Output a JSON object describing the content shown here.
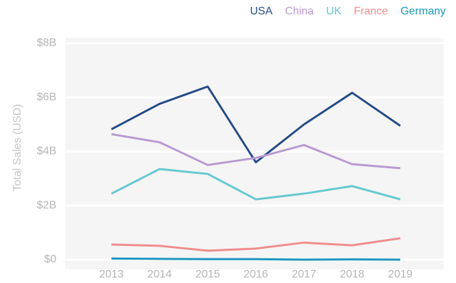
{
  "chart_data": {
    "type": "line",
    "y_label": "Total Sales (USD)",
    "categories": [
      "2013",
      "2014",
      "2015",
      "2016",
      "2017",
      "2018",
      "2019"
    ],
    "series": [
      {
        "name": "USA",
        "color": "#234a87",
        "values": [
          4.82,
          5.76,
          6.4,
          3.6,
          5.0,
          6.17,
          4.95
        ]
      },
      {
        "name": "China",
        "color": "#b899d0",
        "values": [
          4.64,
          4.34,
          3.5,
          3.76,
          4.24,
          3.53,
          3.38
        ]
      },
      {
        "name": "UK",
        "color": "#62c9cf",
        "values": [
          2.44,
          3.35,
          3.17,
          2.23,
          2.44,
          2.72,
          2.23
        ]
      },
      {
        "name": "France",
        "color": "#f08c8c",
        "values": [
          0.56,
          0.51,
          0.33,
          0.41,
          0.63,
          0.53,
          0.79
        ]
      },
      {
        "name": "Germany",
        "color": "#1a96c0",
        "values": [
          0.04,
          0.03,
          0.02,
          0.02,
          0,
          0.01,
          0
        ]
      }
    ],
    "ylim": [
      0,
      8
    ],
    "yticks": [
      {
        "value": 0,
        "label": "$0"
      },
      {
        "value": 2,
        "label": "$2B"
      },
      {
        "value": 4,
        "label": "$4B"
      },
      {
        "value": 6,
        "label": "$6B"
      },
      {
        "value": 8,
        "label": "$8B"
      }
    ],
    "grid": true,
    "legend": "top-right"
  }
}
